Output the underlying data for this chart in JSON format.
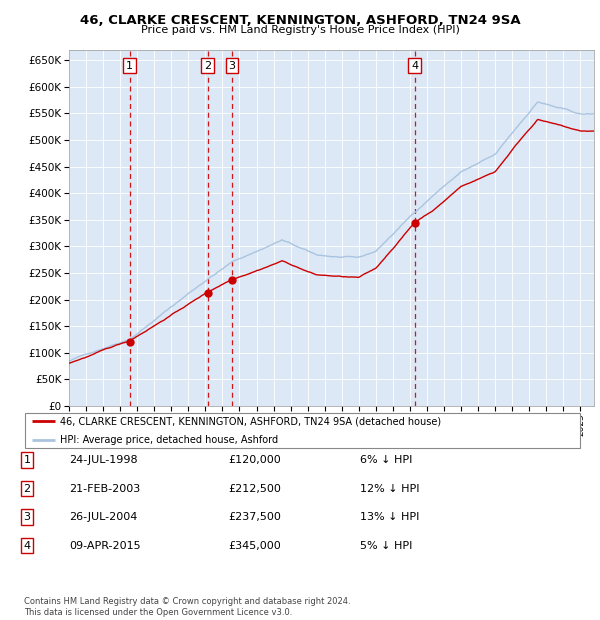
{
  "title": "46, CLARKE CRESCENT, KENNINGTON, ASHFORD, TN24 9SA",
  "subtitle": "Price paid vs. HM Land Registry's House Price Index (HPI)",
  "transactions": [
    {
      "num": 1,
      "date_label": "24-JUL-1998",
      "price": 120000,
      "pct": "6%",
      "year_x": 1998.56
    },
    {
      "num": 2,
      "date_label": "21-FEB-2003",
      "price": 212500,
      "pct": "12%",
      "year_x": 2003.13
    },
    {
      "num": 3,
      "date_label": "26-JUL-2004",
      "price": 237500,
      "pct": "13%",
      "year_x": 2004.56
    },
    {
      "num": 4,
      "date_label": "09-APR-2015",
      "price": 345000,
      "pct": "5%",
      "year_x": 2015.27
    }
  ],
  "legend_line1": "46, CLARKE CRESCENT, KENNINGTON, ASHFORD, TN24 9SA (detached house)",
  "legend_line2": "HPI: Average price, detached house, Ashford",
  "table_rows": [
    [
      "1",
      "24-JUL-1998",
      "£120,000",
      "6% ↓ HPI"
    ],
    [
      "2",
      "21-FEB-2003",
      "£212,500",
      "12% ↓ HPI"
    ],
    [
      "3",
      "26-JUL-2004",
      "£237,500",
      "13% ↓ HPI"
    ],
    [
      "4",
      "09-APR-2015",
      "£345,000",
      "5% ↓ HPI"
    ]
  ],
  "footer": "Contains HM Land Registry data © Crown copyright and database right 2024.\nThis data is licensed under the Open Government Licence v3.0.",
  "hpi_color": "#aac4e0",
  "price_color": "#cc0000",
  "marker_color": "#cc0000",
  "dashed_color": "#cc0000",
  "background_chart": "#dce8f5",
  "ylim": [
    0,
    670000
  ],
  "yticks": [
    0,
    50000,
    100000,
    150000,
    200000,
    250000,
    300000,
    350000,
    400000,
    450000,
    500000,
    550000,
    600000,
    650000
  ],
  "xmin": 1995.0,
  "xmax": 2025.8
}
